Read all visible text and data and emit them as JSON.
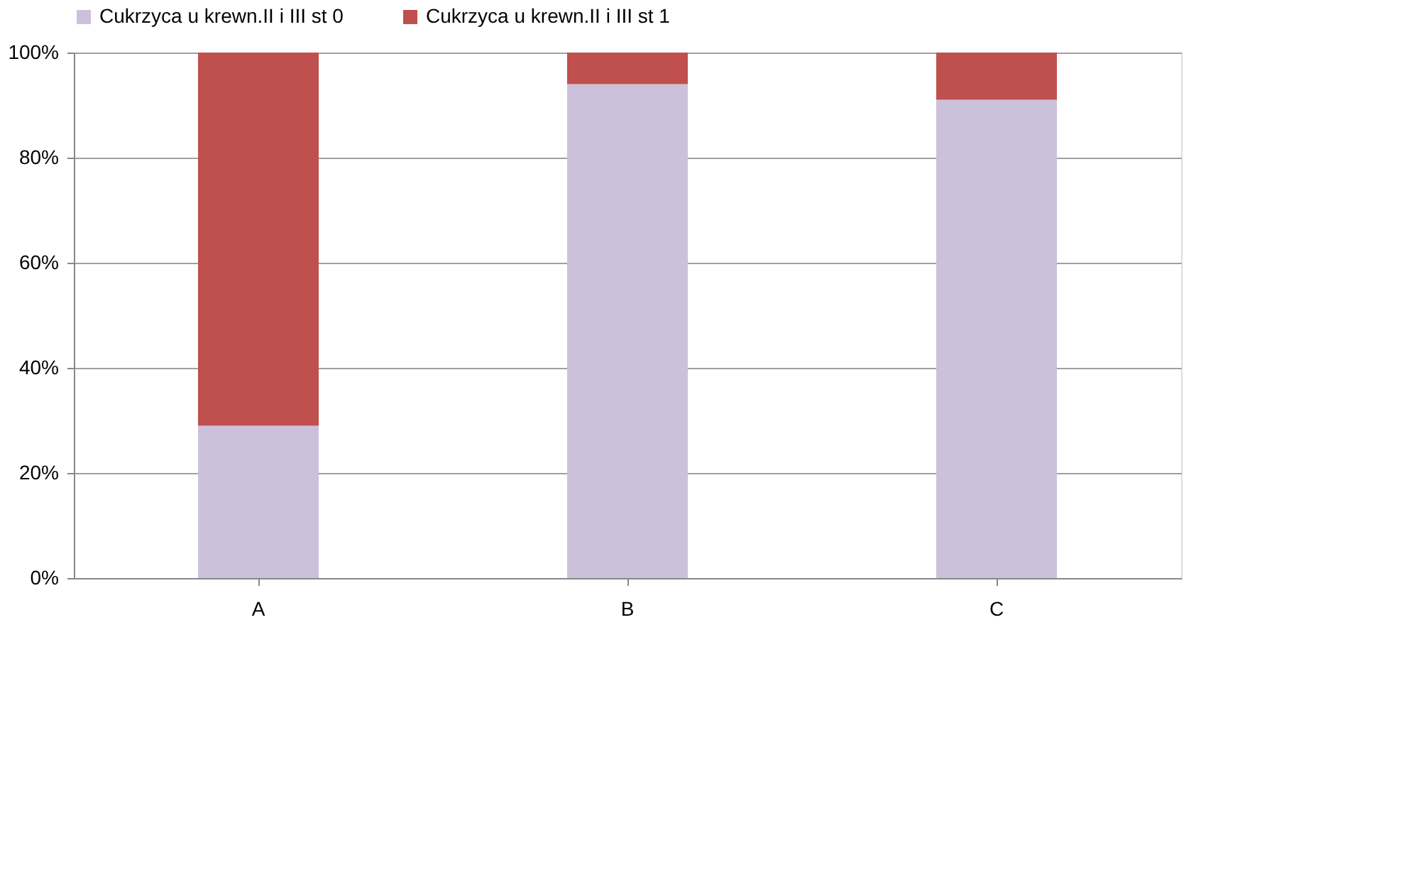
{
  "chart_data": {
    "type": "bar",
    "stacked": true,
    "categories": [
      "A",
      "B",
      "C"
    ],
    "series": [
      {
        "name": "Cukrzyca u krewn.II i III st 0",
        "color": "#ccc1da",
        "values": [
          29,
          94,
          91
        ]
      },
      {
        "name": "Cukrzyca u krewn.II i III st 1",
        "color": "#c0504d",
        "values": [
          71,
          6,
          9
        ]
      }
    ],
    "ylim": [
      0,
      100
    ],
    "yticks": [
      {
        "value": 0,
        "label": "0%"
      },
      {
        "value": 20,
        "label": "20%"
      },
      {
        "value": 40,
        "label": "40%"
      },
      {
        "value": 60,
        "label": "60%"
      },
      {
        "value": 80,
        "label": "80%"
      },
      {
        "value": 100,
        "label": "100%"
      }
    ],
    "grid": "y",
    "legend": "top"
  }
}
